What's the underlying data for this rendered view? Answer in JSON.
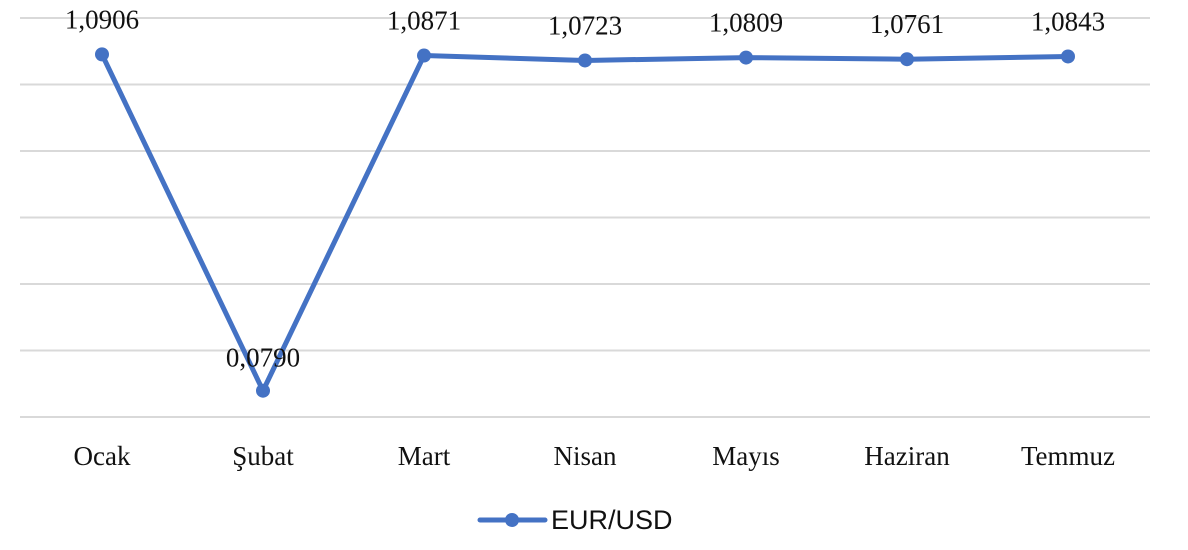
{
  "chart_data": {
    "type": "line",
    "categories": [
      "Ocak",
      "Şubat",
      "Mart",
      "Nisan",
      "Mayıs",
      "Haziran",
      "Temmuz"
    ],
    "series": [
      {
        "name": "EUR/USD",
        "values": [
          1.0906,
          0.079,
          1.0871,
          1.0723,
          1.0809,
          1.0761,
          1.0843
        ],
        "labels": [
          "1,0906",
          "0,0790",
          "1,0871",
          "1,0723",
          "1,0809",
          "1,0761",
          "1,0843"
        ],
        "color": "#4472c4"
      }
    ],
    "ylim": [
      0,
      1.2
    ],
    "grid": true,
    "gridline_count": 7,
    "legend": "bottom"
  }
}
